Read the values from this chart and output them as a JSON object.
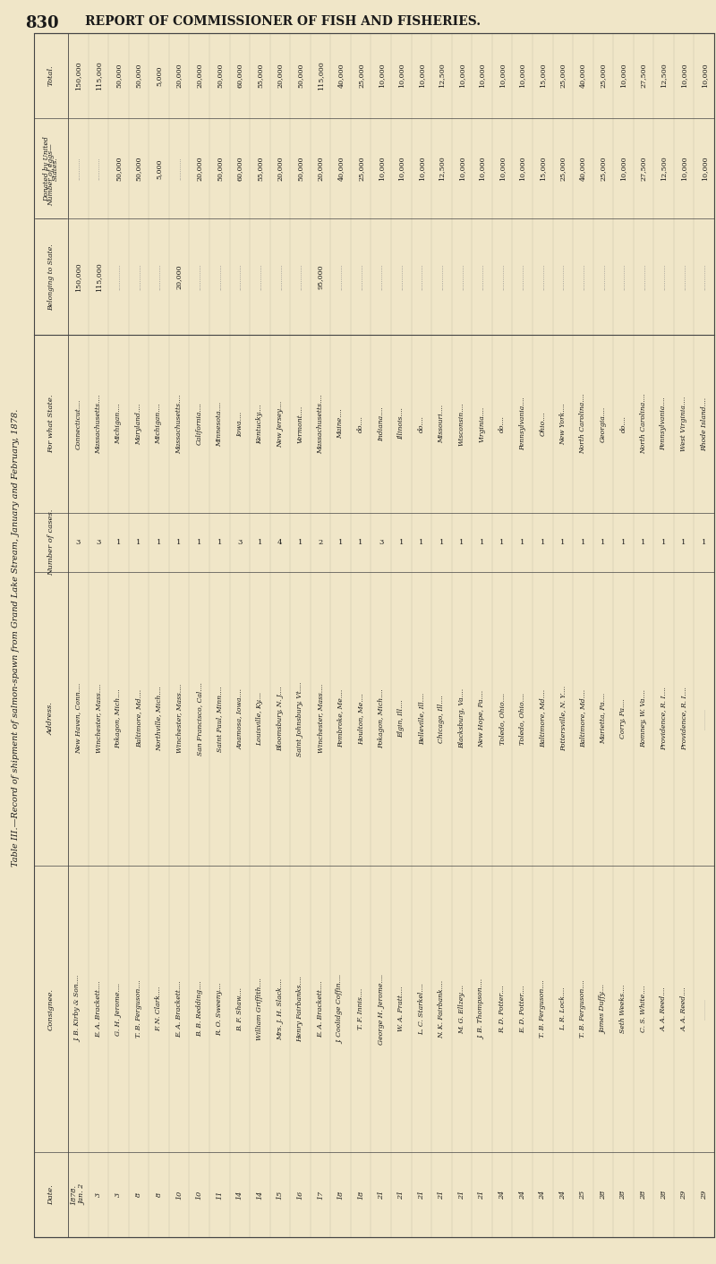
{
  "page_number": "830",
  "page_header": "REPORT OF COMMISSIONER OF FISH AND FISHERIES.",
  "table_title": "Table III.—Record of shipment of salmon-spawn from Grand Lake Stream, January and February, 1878.",
  "background_color": "#f0e6c8",
  "text_color": "#1a1a1a",
  "columns": [
    "Date.",
    "Consignee.",
    "Address.",
    "Number of cases.",
    "For what State.",
    "Belonging to State.",
    "Donated by United States.",
    "Total."
  ],
  "rows": [
    [
      "1878.\nJan. 2",
      "J. B. Kirby & Son....",
      "New Haven, Conn....",
      "3",
      "Connecticut....",
      "150,000",
      "",
      "150,000"
    ],
    [
      "3",
      "E. A. Brackett....",
      "Winchester, Mass....",
      "3",
      "Massachusetts....",
      "115,000",
      "",
      "115,000"
    ],
    [
      "3",
      "G. H. Jerome....",
      "Pokagon, Mich....",
      "1",
      "Michigan....",
      "",
      "50,000",
      "50,000"
    ],
    [
      "8",
      "T. B. Ferguson....",
      "Baltimore, Md....",
      "1",
      "Maryland....",
      "",
      "50,000",
      "50,000"
    ],
    [
      "8",
      "F. N. Clark....",
      "Northville, Mich....",
      "1",
      "Michigan....",
      "",
      "5,000",
      "5,000"
    ],
    [
      "10",
      "E. A. Brackett....",
      "Winchester, Mass....",
      "1",
      "Massachusetts....",
      "20,000",
      "",
      "20,000"
    ],
    [
      "10",
      "B. B. Redding....",
      "San Francisco, Cal....",
      "1",
      "California....",
      "",
      "20,000",
      "20,000"
    ],
    [
      "11",
      "R. O. Sweeny....",
      "Saint Paul, Minn....",
      "1",
      "Minnesota....",
      "",
      "50,000",
      "50,000"
    ],
    [
      "14",
      "B. F. Shaw....",
      "Anamosa, Iowa....",
      "3",
      "Iowa....",
      "",
      "60,000",
      "60,000"
    ],
    [
      "14",
      "William Griffith....",
      "Louisville, Ky....",
      "1",
      "Kentucky....",
      "",
      "55,000",
      "55,000"
    ],
    [
      "15",
      "Mrs. J. H. Slack....",
      "Bloomsbury, N. J....",
      "4",
      "New Jersey....",
      "",
      "20,000",
      "20,000"
    ],
    [
      "16",
      "Henry Fairbanks....",
      "Saint Johnsbury, Vt....",
      "1",
      "Vermont....",
      "",
      "50,000",
      "50,000"
    ],
    [
      "17",
      "E. A. Brackett....",
      "Winchester, Mass....",
      "2",
      "Massachusetts....",
      "95,000",
      "20,000",
      "115,000"
    ],
    [
      "18",
      "J. Coolidge Coffin....",
      "Pembroke, Me....",
      "1",
      "Maine....",
      "",
      "40,000",
      "40,000"
    ],
    [
      "18",
      "T. F. Innis....",
      "Houlton, Me....",
      "1",
      "do....",
      "",
      "25,000",
      "25,000"
    ],
    [
      "21",
      "George H. Jerome....",
      "Pokagon, Mich....",
      "3",
      "Indiana....",
      "",
      "10,000",
      "10,000"
    ],
    [
      "21",
      "W. A. Pratt....",
      "Elgin, Ill....",
      "1",
      "Illinois....",
      "",
      "10,000",
      "10,000"
    ],
    [
      "21",
      "L. C. Starkel....",
      "Belleville, Ill....",
      "1",
      "do....",
      "",
      "10,000",
      "10,000"
    ],
    [
      "21",
      "N. K. Fairbank....",
      "Chicago, Ill....",
      "1",
      "Missouri....",
      "",
      "12,500",
      "12,500"
    ],
    [
      "21",
      "M. G. Ellzey....",
      "Blacksburg, Va....",
      "1",
      "Wisconsin....",
      "",
      "10,000",
      "10,000"
    ],
    [
      "21",
      "J. B. Thompson....",
      "New Hope, Pa....",
      "1",
      "Virginia....",
      "",
      "10,000",
      "10,000"
    ],
    [
      "24",
      "R. D. Potter....",
      "Toledo, Ohio....",
      "1",
      "do....",
      "",
      "10,000",
      "10,000"
    ],
    [
      "24",
      "E. D. Potter....",
      "Toledo, Ohio....",
      "1",
      "Pennsylvania....",
      "",
      "10,000",
      "10,000"
    ],
    [
      "24",
      "T. B. Ferguson....",
      "Baltimore, Md....",
      "1",
      "Ohio....",
      "",
      "15,000",
      "15,000"
    ],
    [
      "24",
      "L. R. Lock....",
      "Pottersville, N. Y....",
      "1",
      "New York....",
      "",
      "25,000",
      "25,000"
    ],
    [
      "25",
      "T. B. Ferguson....",
      "Baltimore, Md....",
      "1",
      "North Carolina....",
      "",
      "40,000",
      "40,000"
    ],
    [
      "28",
      "James Duffy....",
      "Marietta, Pa....",
      "1",
      "Georgia....",
      "",
      "25,000",
      "25,000"
    ],
    [
      "28",
      "Seth Weeks....",
      "Corry, Pa....",
      "1",
      "do....",
      "",
      "10,000",
      "10,000"
    ],
    [
      "28",
      "C. S. White....",
      "Romney, W. Va....",
      "1",
      "North Carolina....",
      "",
      "27,500",
      "27,500"
    ],
    [
      "28",
      "A. A. Reed....",
      "Providence, R. I....",
      "1",
      "Pennsylvania....",
      "",
      "12,500",
      "12,500"
    ],
    [
      "29",
      "A. A. Reed....",
      "Providence, R. I....",
      "1",
      "West Virginia....",
      "",
      "10,000",
      "10,000"
    ],
    [
      "29",
      "",
      "",
      "1",
      "Rhode Island....",
      "",
      "10,000",
      "10,000"
    ]
  ],
  "bg_color": "#f0e6c8",
  "line_color": "#444444",
  "dot_color": "#888888"
}
